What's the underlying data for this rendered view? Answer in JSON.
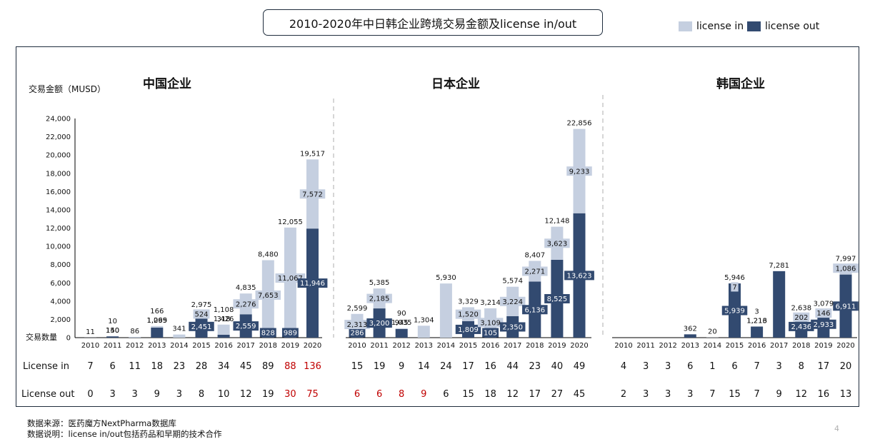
{
  "title": "2010-2020年中日韩企业跨境交易金额及license in/out",
  "legend": [
    {
      "label": "license in",
      "color": "#c5cfe0"
    },
    {
      "label": "license out",
      "color": "#324a70"
    }
  ],
  "colors": {
    "license_in": "#c5cfe0",
    "license_out": "#324a70",
    "red_count": "#c00000",
    "axis": "#000000",
    "divider": "#bfbfbf"
  },
  "y_axis_label": "交易金额（MUSD）",
  "count_axis_label": "交易数量",
  "row_labels": {
    "license_in": "License in",
    "license_out": "License out"
  },
  "footnotes": {
    "source": "数据来源：医药魔方NextPharma数据库",
    "note": "数据说明：license in/out包括药品和早期的技术合作"
  },
  "page_number": "4",
  "chart_data": {
    "type": "bar",
    "stacked": true,
    "ylim": [
      0,
      24000
    ],
    "yticks": [
      "0",
      "2,000",
      "4,000",
      "6,000",
      "8,000",
      "10,000",
      "12,000",
      "14,000",
      "16,000",
      "18,000",
      "20,000",
      "22,000",
      "24,000"
    ],
    "years": [
      "2010",
      "2011",
      "2012",
      "2013",
      "2014",
      "2015",
      "2016",
      "2017",
      "2018",
      "2019",
      "2020"
    ],
    "groups": [
      {
        "name": "中国企业",
        "license_in": [
          11,
          10,
          86,
          166,
          341,
          524,
          1108,
          2276,
          7653,
          11067,
          7572
        ],
        "license_out": [
          0,
          140,
          0,
          1099,
          0,
          2451,
          318,
          2559,
          828,
          989,
          11946
        ],
        "totals": [
          11,
          150,
          86,
          1265,
          341,
          2975,
          1426,
          4835,
          8480,
          12055,
          19517
        ],
        "labels": [
          [
            "11",
            null,
            null
          ],
          [
            "150",
            "10",
            "140"
          ],
          [
            "86",
            null,
            null
          ],
          [
            "1,265",
            "166",
            "1,099"
          ],
          [
            "341",
            null,
            null
          ],
          [
            "2,975",
            "524",
            "2,451"
          ],
          [
            "1,426",
            "1,108",
            "318"
          ],
          [
            "4,835",
            "2,276",
            "2,559"
          ],
          [
            "8,480",
            "7,653",
            "828"
          ],
          [
            "12,055",
            "11,067",
            "989"
          ],
          [
            "19,517",
            "7,572",
            "11,946"
          ]
        ],
        "count_in": [
          7,
          6,
          11,
          18,
          23,
          28,
          34,
          45,
          89,
          88,
          136
        ],
        "count_out": [
          0,
          3,
          3,
          9,
          3,
          8,
          10,
          12,
          19,
          30,
          75
        ],
        "count_in_red": [
          false,
          false,
          false,
          false,
          false,
          false,
          false,
          false,
          false,
          true,
          true
        ],
        "count_out_red": [
          false,
          false,
          false,
          false,
          false,
          false,
          false,
          false,
          false,
          true,
          true
        ]
      },
      {
        "name": "日本企业",
        "license_in": [
          2313,
          2185,
          90,
          1304,
          5930,
          1520,
          3109,
          3224,
          2271,
          3623,
          9233
        ],
        "license_out": [
          286,
          3200,
          945,
          0,
          0,
          1809,
          105,
          2350,
          6136,
          8525,
          13623
        ],
        "totals": [
          2599,
          5385,
          1035,
          1304,
          5930,
          3329,
          3214,
          5574,
          8407,
          12148,
          22856
        ],
        "labels": [
          [
            "2,599",
            "2,313",
            "286"
          ],
          [
            "5,385",
            "2,185",
            "3,200"
          ],
          [
            "1,035",
            "90",
            "945"
          ],
          [
            "1,304",
            null,
            null
          ],
          [
            "5,930",
            null,
            null
          ],
          [
            "3,329",
            "1,520",
            "1,809"
          ],
          [
            "3,214",
            "3,109",
            "105"
          ],
          [
            "5,574",
            "3,224",
            "2,350"
          ],
          [
            "8,407",
            "2,271",
            "6,136"
          ],
          [
            "12,148",
            "3,623",
            "8,525"
          ],
          [
            "22,856",
            "9,233",
            "13,623"
          ]
        ],
        "count_in": [
          15,
          19,
          9,
          14,
          24,
          17,
          16,
          44,
          23,
          40,
          49
        ],
        "count_out": [
          6,
          6,
          8,
          9,
          6,
          15,
          18,
          12,
          17,
          27,
          45
        ],
        "count_in_red": [
          false,
          false,
          false,
          false,
          false,
          false,
          false,
          false,
          false,
          false,
          false
        ],
        "count_out_red": [
          true,
          true,
          true,
          true,
          false,
          false,
          false,
          false,
          false,
          false,
          false
        ]
      },
      {
        "name": "韩国企业",
        "license_in": [
          0,
          0,
          0,
          0,
          20,
          7,
          3,
          0,
          202,
          146,
          1086
        ],
        "license_out": [
          0,
          0,
          0,
          362,
          0,
          5939,
          1213,
          7281,
          2436,
          2933,
          6911
        ],
        "totals": [
          0,
          0,
          0,
          362,
          20,
          5946,
          1216,
          7281,
          2638,
          3079,
          7997
        ],
        "labels": [
          [
            null,
            null,
            null
          ],
          [
            null,
            null,
            null
          ],
          [
            null,
            null,
            null
          ],
          [
            "362",
            null,
            null
          ],
          [
            "20",
            null,
            null
          ],
          [
            "5,946",
            "7",
            "5,939"
          ],
          [
            "1,216",
            "3",
            "1,213"
          ],
          [
            "7,281",
            null,
            null
          ],
          [
            "2,638",
            "202",
            "2,436"
          ],
          [
            "3,079",
            "146",
            "2,933"
          ],
          [
            "7,997",
            "1,086",
            "6,911"
          ]
        ],
        "count_in": [
          4,
          3,
          3,
          6,
          1,
          6,
          7,
          3,
          8,
          17,
          20
        ],
        "count_out": [
          2,
          3,
          3,
          3,
          7,
          15,
          7,
          9,
          12,
          16,
          13
        ],
        "count_in_red": [
          false,
          false,
          false,
          false,
          false,
          false,
          false,
          false,
          false,
          false,
          false
        ],
        "count_out_red": [
          false,
          false,
          false,
          false,
          false,
          false,
          false,
          false,
          false,
          false,
          false
        ]
      }
    ]
  }
}
